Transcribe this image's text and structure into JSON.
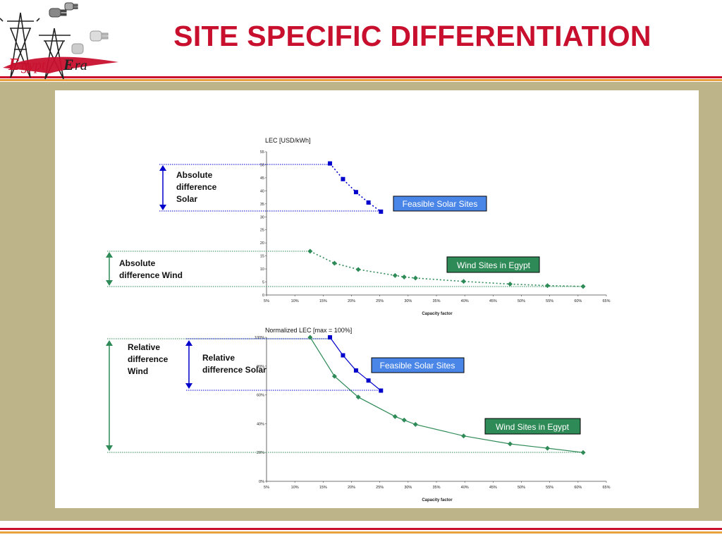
{
  "slide": {
    "title": "SITE SPECIFIC DIFFERENTIATION",
    "logo_text": "EgyptEra",
    "colors": {
      "title": "#c8102e",
      "rule_red": "#c8102e",
      "rule_orange": "#e8a13c",
      "panel": "#bdb48a",
      "solar": "#0000cc",
      "wind": "#2e8b57"
    }
  },
  "chart_data": [
    {
      "type": "line",
      "title": "LEC [USD/kWh]",
      "xlabel": "Capacity factor",
      "ylabel": "",
      "x_ticks": [
        "5%",
        "10%",
        "15%",
        "20%",
        "25%",
        "30%",
        "35%",
        "40%",
        "45%",
        "50%",
        "55%",
        "60%",
        "65%"
      ],
      "y_ticks": [
        "0",
        "5",
        "10",
        "15",
        "20",
        "25",
        "30",
        "35",
        "40",
        "45",
        "50",
        "55"
      ],
      "xlim": [
        5,
        65
      ],
      "ylim": [
        0,
        55
      ],
      "series": [
        {
          "name": "Feasible Solar Sites",
          "color": "#0000cc",
          "style": "dotted",
          "marker": "square",
          "x": [
            16.2,
            18.5,
            20.8,
            23.0,
            25.2
          ],
          "y": [
            50.5,
            44.5,
            39.5,
            35.5,
            32.0
          ]
        },
        {
          "name": "Wind Sites in Egypt",
          "color": "#2e8b57",
          "style": "dotted",
          "marker": "diamond",
          "x": [
            12.7,
            17.0,
            21.2,
            27.7,
            29.3,
            31.3,
            39.8,
            48.0,
            54.6,
            60.9
          ],
          "y": [
            16.8,
            12.2,
            9.8,
            7.5,
            6.9,
            6.5,
            5.2,
            4.2,
            3.6,
            3.3
          ]
        }
      ],
      "annotations": [
        {
          "text": [
            "Absolute",
            "difference",
            "Solar"
          ]
        },
        {
          "text": [
            "Absolute",
            "difference Wind"
          ]
        }
      ]
    },
    {
      "type": "line",
      "title": "Normalized LEC [max = 100%]",
      "xlabel": "Capacity factor",
      "ylabel": "",
      "x_ticks": [
        "5%",
        "10%",
        "15%",
        "20%",
        "25%",
        "30%",
        "35%",
        "40%",
        "45%",
        "50%",
        "55%",
        "60%",
        "65%"
      ],
      "y_ticks": [
        "0%",
        "20%",
        "40%",
        "60%",
        "80%",
        "100%"
      ],
      "xlim": [
        5,
        65
      ],
      "ylim": [
        0,
        100
      ],
      "series": [
        {
          "name": "Feasible Solar Sites",
          "color": "#0000cc",
          "style": "solid",
          "marker": "square",
          "x": [
            16.2,
            18.5,
            20.8,
            23.0,
            25.2
          ],
          "y": [
            100,
            87.5,
            77,
            70,
            63
          ]
        },
        {
          "name": "Wind Sites in Egypt",
          "color": "#2e8b57",
          "style": "solid",
          "marker": "diamond",
          "x": [
            12.7,
            17.0,
            21.2,
            27.7,
            29.3,
            31.3,
            39.8,
            48.0,
            54.6,
            60.9
          ],
          "y": [
            100,
            73,
            58.5,
            45,
            42.5,
            39.5,
            31.5,
            26,
            23,
            20
          ]
        }
      ],
      "annotations": [
        {
          "text": [
            "Relative",
            "difference",
            "Wind"
          ]
        },
        {
          "text": [
            "Relative",
            "difference Solar"
          ]
        }
      ]
    }
  ]
}
